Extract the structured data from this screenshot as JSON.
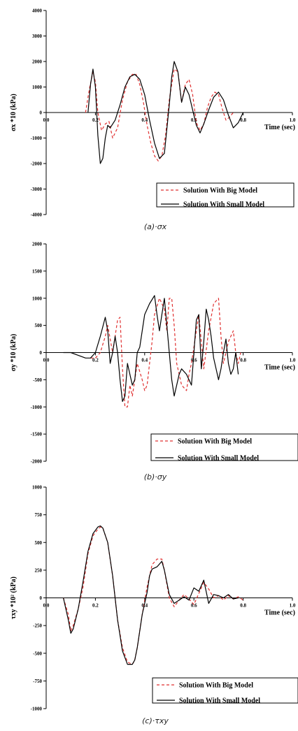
{
  "chart_data": [
    {
      "type": "line",
      "ylabel": "σx *10 (kPa)",
      "xlabel": "Time (sec)",
      "caption": "(a)·σx",
      "xlim": [
        0.0,
        1.0
      ],
      "ylim": [
        -4000,
        4000
      ],
      "xticks": [
        0.0,
        0.2,
        0.4,
        0.6,
        0.8,
        1.0
      ],
      "xtick_labels": [
        "0.0",
        "0.2",
        "0.4",
        "0.6",
        "0.8",
        "1.0"
      ],
      "yticks": [
        -4000,
        -3000,
        -2000,
        -1000,
        0,
        1000,
        2000,
        3000,
        4000
      ],
      "legend_position": "lower-right",
      "series": [
        {
          "name": "Solution With Big Model",
          "color": "#e03030",
          "dash": "dashed",
          "x": [
            0.16,
            0.175,
            0.19,
            0.2,
            0.21,
            0.225,
            0.24,
            0.255,
            0.27,
            0.29,
            0.31,
            0.33,
            0.35,
            0.365,
            0.38,
            0.395,
            0.41,
            0.425,
            0.44,
            0.455,
            0.47,
            0.485,
            0.5,
            0.52,
            0.535,
            0.55,
            0.565,
            0.58,
            0.595,
            0.61,
            0.625,
            0.64,
            0.655,
            0.67,
            0.685,
            0.7,
            0.715,
            0.73,
            0.745,
            0.76
          ],
          "values": [
            0,
            900,
            1600,
            1200,
            0,
            -700,
            -450,
            -350,
            -1000,
            -600,
            500,
            1200,
            1500,
            1500,
            1100,
            400,
            -500,
            -1200,
            -1700,
            -1900,
            -1700,
            -900,
            500,
            1700,
            1600,
            400,
            1100,
            1300,
            700,
            -400,
            -700,
            -450,
            200,
            600,
            800,
            700,
            150,
            -300,
            -180,
            0
          ]
        },
        {
          "name": "Solution With Small Model",
          "color": "#000000",
          "dash": "solid",
          "x": [
            0.17,
            0.18,
            0.19,
            0.2,
            0.21,
            0.22,
            0.23,
            0.24,
            0.25,
            0.26,
            0.28,
            0.3,
            0.32,
            0.34,
            0.36,
            0.38,
            0.4,
            0.42,
            0.44,
            0.46,
            0.48,
            0.5,
            0.51,
            0.52,
            0.535,
            0.55,
            0.565,
            0.58,
            0.595,
            0.61,
            0.625,
            0.64,
            0.66,
            0.68,
            0.7,
            0.72,
            0.74,
            0.76,
            0.78,
            0.8
          ],
          "values": [
            0,
            1100,
            1700,
            1000,
            -900,
            -2000,
            -1800,
            -1000,
            -500,
            -600,
            -300,
            300,
            1000,
            1400,
            1500,
            1300,
            700,
            -300,
            -1200,
            -1800,
            -1600,
            300,
            1400,
            2000,
            1600,
            400,
            1000,
            700,
            100,
            -500,
            -800,
            -450,
            100,
            600,
            800,
            500,
            -100,
            -600,
            -400,
            0
          ]
        }
      ]
    },
    {
      "type": "line",
      "ylabel": "σy *10 (kPa)",
      "xlabel": "Time (sec)",
      "caption": "(b)·σy",
      "xlim": [
        0.0,
        1.0
      ],
      "ylim": [
        -2000,
        2000
      ],
      "xticks": [
        0.0,
        0.2,
        0.4,
        0.6,
        0.8,
        1.0
      ],
      "xtick_labels": [
        "0.0",
        "0.2",
        "0.4",
        "0.6",
        "0.8",
        "1.0"
      ],
      "yticks": [
        -2000,
        -1500,
        -1000,
        -500,
        0,
        500,
        1000,
        1500,
        2000
      ],
      "legend_position": "lower-right",
      "series": [
        {
          "name": "Solution With Big Model",
          "color": "#e03030",
          "dash": "dashed",
          "x": [
            0.18,
            0.2,
            0.22,
            0.24,
            0.25,
            0.27,
            0.29,
            0.3,
            0.31,
            0.32,
            0.33,
            0.34,
            0.35,
            0.37,
            0.39,
            0.4,
            0.41,
            0.42,
            0.43,
            0.44,
            0.46,
            0.48,
            0.49,
            0.5,
            0.51,
            0.52,
            0.53,
            0.55,
            0.57,
            0.58,
            0.59,
            0.6,
            0.62,
            0.64,
            0.66,
            0.68,
            0.7,
            0.71,
            0.72,
            0.73,
            0.74,
            0.76,
            0.77,
            0.78,
            0.79
          ],
          "values": [
            -100,
            -100,
            0,
            300,
            500,
            0,
            600,
            650,
            -300,
            -1000,
            -1000,
            -600,
            -800,
            -200,
            -500,
            -700,
            -600,
            -200,
            200,
            700,
            1000,
            800,
            400,
            1000,
            1000,
            500,
            -200,
            -600,
            -700,
            -400,
            -200,
            100,
            700,
            -300,
            400,
            900,
            1000,
            300,
            -200,
            0,
            200,
            400,
            0,
            -200,
            0
          ]
        },
        {
          "name": "Solution With Small Model",
          "color": "#000000",
          "dash": "solid",
          "x": [
            0.07,
            0.1,
            0.13,
            0.16,
            0.18,
            0.2,
            0.22,
            0.24,
            0.25,
            0.26,
            0.27,
            0.28,
            0.29,
            0.3,
            0.31,
            0.32,
            0.33,
            0.34,
            0.35,
            0.36,
            0.37,
            0.38,
            0.39,
            0.4,
            0.42,
            0.44,
            0.45,
            0.46,
            0.47,
            0.48,
            0.5,
            0.51,
            0.52,
            0.53,
            0.54,
            0.55,
            0.57,
            0.59,
            0.6,
            0.61,
            0.62,
            0.63,
            0.64,
            0.65,
            0.66,
            0.67,
            0.68,
            0.69,
            0.7,
            0.71,
            0.72,
            0.73,
            0.74,
            0.75,
            0.76,
            0.77,
            0.78
          ],
          "values": [
            0,
            0,
            -50,
            -100,
            -100,
            0,
            300,
            650,
            400,
            -200,
            0,
            300,
            0,
            -500,
            -900,
            -800,
            -200,
            -400,
            -600,
            -500,
            0,
            100,
            400,
            700,
            900,
            1050,
            700,
            400,
            700,
            1000,
            0,
            -500,
            -800,
            -600,
            -400,
            -300,
            -400,
            -600,
            0,
            600,
            700,
            -300,
            200,
            800,
            600,
            300,
            -100,
            -300,
            -500,
            -300,
            0,
            250,
            -200,
            -400,
            -300,
            0,
            -400
          ]
        }
      ]
    },
    {
      "type": "line",
      "ylabel": "τxy *10² (kPa)",
      "xlabel": "Time (sec)",
      "caption": "(c)·τxy",
      "xlim": [
        0.0,
        1.0
      ],
      "ylim": [
        -1000,
        1000
      ],
      "xticks": [
        0.0,
        0.2,
        0.4,
        0.6,
        0.8,
        1.0
      ],
      "xtick_labels": [
        "0.0",
        "0.2",
        "0.4",
        "0.6",
        "0.8",
        "1.0"
      ],
      "yticks": [
        -1000,
        -750,
        -500,
        -250,
        0,
        250,
        500,
        750,
        1000
      ],
      "legend_position": "lower-right",
      "series": [
        {
          "name": "Solution With Big Model",
          "color": "#e03030",
          "dash": "dashed",
          "x": [
            0.07,
            0.09,
            0.1,
            0.11,
            0.13,
            0.15,
            0.17,
            0.19,
            0.21,
            0.22,
            0.23,
            0.25,
            0.27,
            0.29,
            0.31,
            0.33,
            0.35,
            0.36,
            0.37,
            0.39,
            0.41,
            0.43,
            0.45,
            0.47,
            0.48,
            0.5,
            0.52,
            0.54,
            0.56,
            0.58,
            0.6,
            0.62,
            0.64,
            0.66,
            0.68,
            0.7,
            0.72,
            0.74,
            0.76,
            0.78,
            0.8
          ],
          "values": [
            0,
            -150,
            -300,
            -250,
            -100,
            100,
            400,
            560,
            620,
            640,
            630,
            500,
            200,
            -200,
            -450,
            -580,
            -600,
            -560,
            -450,
            -150,
            100,
            300,
            350,
            350,
            250,
            0,
            -80,
            -20,
            30,
            -10,
            -60,
            40,
            140,
            80,
            0,
            20,
            -20,
            20,
            -10,
            10,
            -20
          ]
        },
        {
          "name": "Solution With Small Model",
          "color": "#000000",
          "dash": "solid",
          "x": [
            0.07,
            0.09,
            0.1,
            0.11,
            0.13,
            0.15,
            0.17,
            0.19,
            0.21,
            0.22,
            0.23,
            0.25,
            0.27,
            0.29,
            0.31,
            0.33,
            0.35,
            0.36,
            0.37,
            0.39,
            0.41,
            0.42,
            0.43,
            0.45,
            0.47,
            0.48,
            0.5,
            0.52,
            0.54,
            0.56,
            0.58,
            0.6,
            0.62,
            0.64,
            0.66,
            0.68,
            0.7,
            0.72,
            0.74,
            0.76,
            0.78
          ],
          "values": [
            0,
            -200,
            -320,
            -280,
            -100,
            150,
            420,
            580,
            640,
            650,
            630,
            500,
            200,
            -200,
            -480,
            -600,
            -600,
            -560,
            -450,
            -150,
            50,
            200,
            260,
            280,
            330,
            250,
            30,
            -50,
            -20,
            10,
            -20,
            90,
            60,
            160,
            -50,
            30,
            20,
            0,
            30,
            -10,
            0
          ]
        }
      ]
    }
  ]
}
